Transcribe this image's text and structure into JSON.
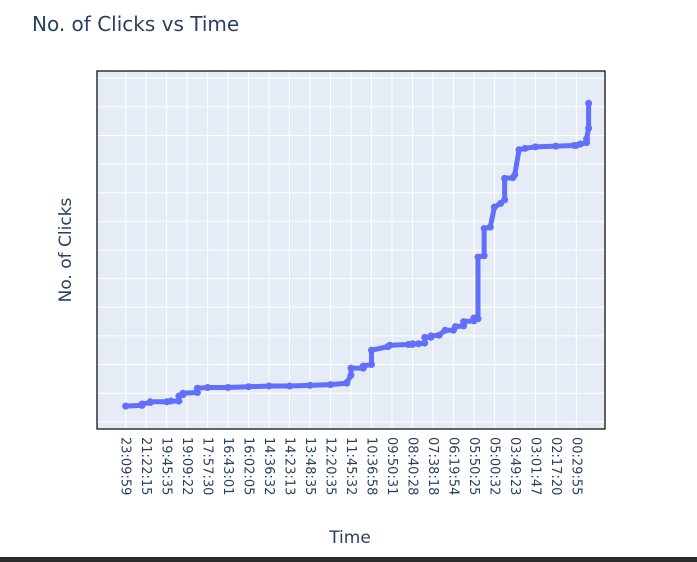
{
  "chart_data": {
    "type": "line",
    "title": "No. of Clicks vs Time",
    "xlabel": "Time",
    "ylabel": "No. of Clicks",
    "x_tick_labels": [
      "23:09:59",
      "21:22:15",
      "19:45:35",
      "19:09:22",
      "17:57:30",
      "16:43:01",
      "16:02:05",
      "14:36:32",
      "14:23:13",
      "13:48:35",
      "12:20:35",
      "11:45:32",
      "10:36:58",
      "09:50:31",
      "08:40:28",
      "07:38:18",
      "06:19:54",
      "05:50:25",
      "05:00:32",
      "03:49:23",
      "03:01:47",
      "02:17:20",
      "00:29:55"
    ],
    "y_tick_labels": [],
    "x_range": [
      -1.4,
      23.4
    ],
    "y_range": [
      -10,
      490
    ],
    "grid": true,
    "series": [
      {
        "color": "#636efa",
        "x": [
          0,
          0.8,
          0.8,
          1.2,
          1.2,
          2.0,
          2.2,
          2.6,
          2.6,
          2.8,
          2.8,
          3.5,
          3.5,
          4.0,
          5.0,
          6.0,
          7.0,
          8.0,
          9.0,
          10.0,
          10.8,
          10.8,
          11.0,
          11.0,
          11.6,
          11.6,
          12.0,
          12.0,
          12.8,
          12.9,
          13.8,
          14.0,
          14.0,
          14.3,
          14.6,
          14.6,
          14.9,
          14.9,
          15.3,
          15.6,
          16.0,
          16.1,
          16.5,
          16.5,
          17.0,
          17.0,
          17.2,
          17.2,
          17.5,
          17.5,
          17.8,
          18.0,
          18.3,
          18.5,
          18.5,
          18.9,
          19.0,
          19.2,
          19.5,
          20.0,
          21.0,
          21.9,
          22.0,
          22.2,
          22.5,
          22.5,
          22.6,
          22.6
        ],
        "y": [
          22,
          23,
          25,
          27,
          28,
          28,
          29,
          29,
          36,
          38,
          40,
          41,
          47,
          48,
          48,
          49,
          50,
          50,
          51,
          52,
          54,
          55,
          65,
          75,
          75,
          78,
          80,
          100,
          105,
          107,
          108,
          108,
          109,
          109,
          110,
          118,
          118,
          120,
          121,
          128,
          128,
          133,
          134,
          140,
          141,
          145,
          144,
          230,
          232,
          270,
          272,
          300,
          305,
          310,
          340,
          341,
          345,
          380,
          382,
          384,
          385,
          386,
          386,
          388,
          390,
          395,
          410,
          445
        ]
      }
    ]
  }
}
